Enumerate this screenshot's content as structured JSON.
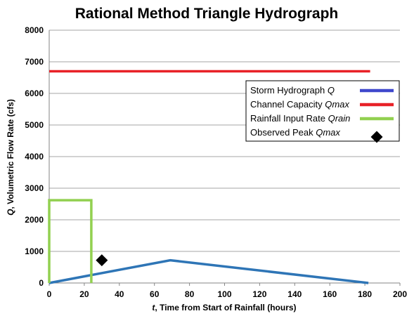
{
  "chart_data": {
    "type": "line",
    "title": "Rational Method Triangle Hydrograph",
    "xlabel": {
      "var": "t",
      "text": ", Time from Start of Rainfall (hours)"
    },
    "ylabel": {
      "var": "Q",
      "text": ", Volumetric Flow Rate (cfs)"
    },
    "xlim": [
      0,
      200
    ],
    "ylim": [
      0,
      8000
    ],
    "xticks": [
      0,
      20,
      40,
      60,
      80,
      100,
      120,
      140,
      160,
      180,
      200
    ],
    "yticks": [
      0,
      1000,
      2000,
      3000,
      4000,
      5000,
      6000,
      7000,
      8000
    ],
    "grid": "horizontal",
    "legend_position": "right",
    "series": [
      {
        "key": "storm",
        "name": "Storm Hydrograph ",
        "name_var": "Q",
        "type": "line",
        "color": "#2E75B6",
        "legend_color": "#3F48CC",
        "x": [
          0,
          69,
          182
        ],
        "y": [
          0,
          720,
          0
        ]
      },
      {
        "key": "capacity",
        "name": "Channel Capacity ",
        "name_var": "Qmax",
        "type": "line",
        "color": "#E82127",
        "x": [
          0,
          183
        ],
        "y": [
          6700,
          6700
        ]
      },
      {
        "key": "rain",
        "name": "Rainfall Input Rate ",
        "name_var": "Qrain",
        "type": "line",
        "color": "#92D050",
        "x": [
          0,
          0,
          24,
          24
        ],
        "y": [
          0,
          2620,
          2620,
          0
        ]
      },
      {
        "key": "observed",
        "name": "Observed Peak ",
        "name_var": "Qmax",
        "type": "scatter",
        "color": "#000000",
        "marker": "diamond",
        "x": [
          30
        ],
        "y": [
          720
        ]
      }
    ]
  }
}
